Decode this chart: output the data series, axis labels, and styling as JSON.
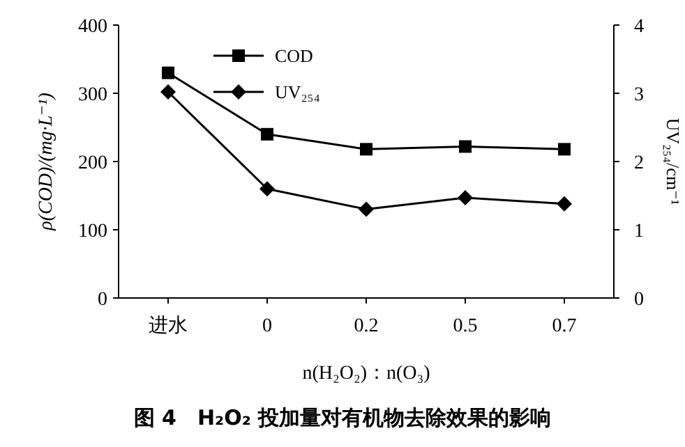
{
  "chart_data": {
    "type": "line",
    "title": "图 4　H₂O₂ 投加量对有机物去除效果的影响",
    "xlabel": "n(H₂O₂)：n(O₃)",
    "ylabel": "ρ(COD)/(mg·L⁻¹)",
    "y2label": "UV₂₅₄/cm⁻¹",
    "categories": [
      "进水",
      "0",
      "0.2",
      "0.5",
      "0.7"
    ],
    "series": [
      {
        "name": "COD",
        "color": "#000000",
        "marker": "square",
        "values": [
          330,
          240,
          218,
          222,
          218
        ]
      },
      {
        "name": "UV₂₅₄",
        "color": "#000000",
        "marker": "diamond",
        "axis": "y2",
        "values": [
          3.02,
          1.6,
          1.3,
          1.47,
          1.38
        ]
      }
    ],
    "ylim": [
      0,
      400
    ],
    "yticks": [
      0,
      100,
      200,
      300,
      400
    ],
    "y2lim": [
      0,
      4
    ],
    "y2ticks": [
      0,
      1,
      2,
      3,
      4
    ],
    "legend": "top left",
    "grid": false
  }
}
